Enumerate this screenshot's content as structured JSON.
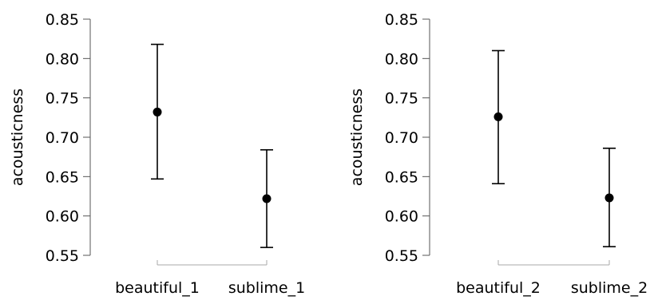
{
  "chart_data": [
    {
      "type": "scatter",
      "style": "point with error bars",
      "ylabel": "acousticness",
      "xlabel": "",
      "ylim": [
        0.55,
        0.85
      ],
      "yticks": [
        0.55,
        0.6,
        0.65,
        0.7,
        0.75,
        0.8,
        0.85
      ],
      "ytick_labels": [
        "0.55",
        "0.60",
        "0.65",
        "0.70",
        "0.75",
        "0.80",
        "0.85"
      ],
      "categories": [
        "beautiful_1",
        "sublime_1"
      ],
      "values": [
        0.732,
        0.622
      ],
      "ci_lower": [
        0.647,
        0.56
      ],
      "ci_upper": [
        0.818,
        0.684
      ],
      "grid": false,
      "color": "#000000"
    },
    {
      "type": "scatter",
      "style": "point with error bars",
      "ylabel": "acousticness",
      "xlabel": "",
      "ylim": [
        0.55,
        0.85
      ],
      "yticks": [
        0.55,
        0.6,
        0.65,
        0.7,
        0.75,
        0.8,
        0.85
      ],
      "ytick_labels": [
        "0.55",
        "0.60",
        "0.65",
        "0.70",
        "0.75",
        "0.80",
        "0.85"
      ],
      "categories": [
        "beautiful_2",
        "sublime_2"
      ],
      "values": [
        0.726,
        0.623
      ],
      "ci_lower": [
        0.641,
        0.561
      ],
      "ci_upper": [
        0.81,
        0.686
      ],
      "grid": false,
      "color": "#000000"
    }
  ]
}
